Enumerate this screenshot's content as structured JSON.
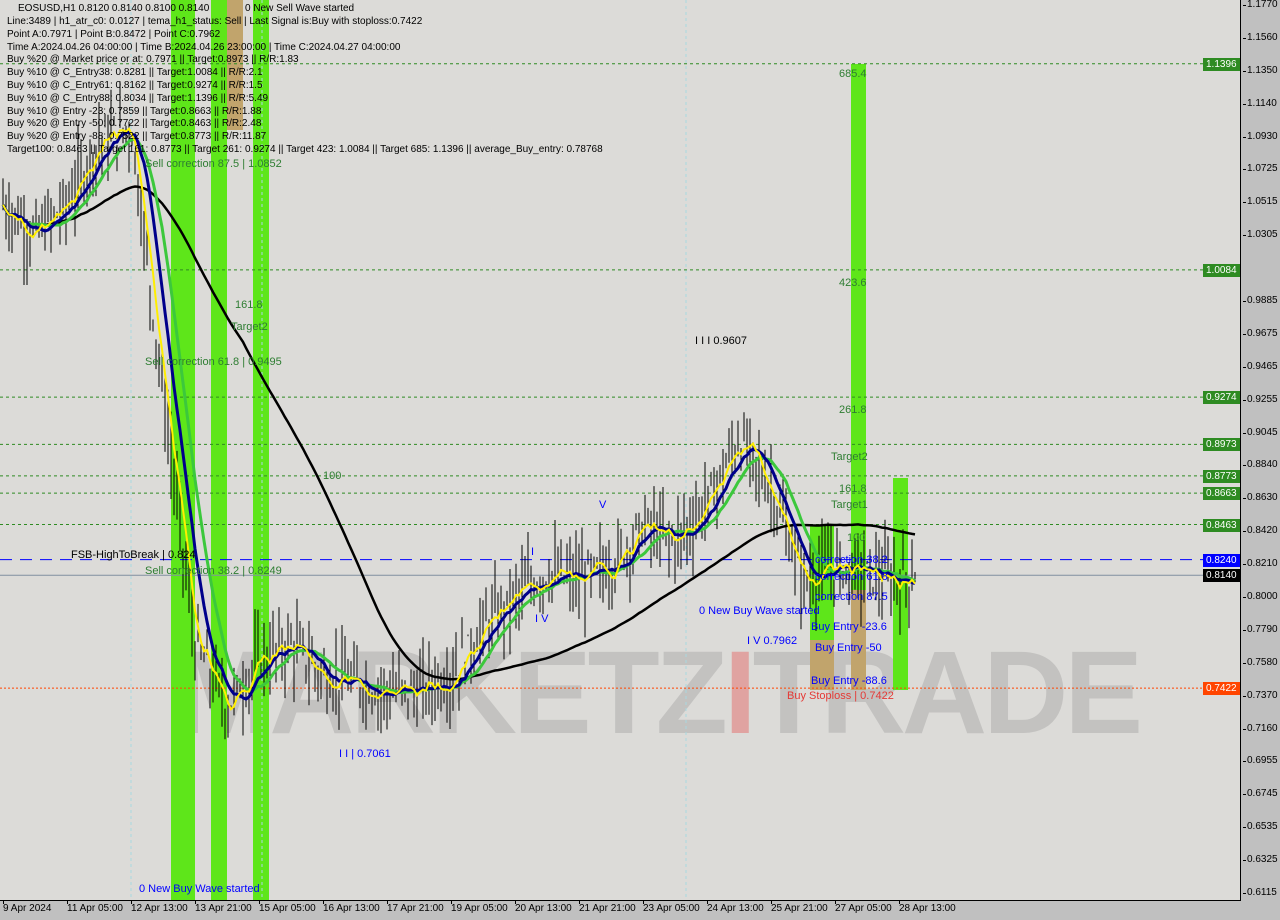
{
  "header": {
    "symbol_line": "EOSUSD,H1  0.8120 0.8140 0.8100 0.8140",
    "info_lines": [
      "Line:3489 | h1_atr_c0: 0.0127 | tema_h1_status: Sell | Last Signal is:Buy with stoploss:0.7422",
      "Point A:0.7971 | Point B:0.8472 | Point C:0.7962",
      "Time A:2024.04.26 04:00:00 | Time B:2024.04.26 23:00:00 | Time C:2024.04.27 04:00:00",
      "Buy %20 @ Market price or at: 0.7971 || Target:0.8973 || R/R:1.83",
      "Buy %10 @ C_Entry38: 0.8281 || Target:1.0084 || R/R:2.1",
      "Buy %10 @ C_Entry61: 0.8162 || Target:0.9274 || R/R:1.5",
      "Buy %10 @ C_Entry88: 0.8034 || Target:1.1396 || R/R:5.49",
      "Buy %10 @ Entry -23: 0.7859 || Target:0.8663 || R/R:1.88",
      "Buy %20 @ Entry -50: 0.7722 || Target:0.8463 || R/R:2.48",
      "Buy %20 @ Entry -88: 0.7522 || Target:0.8773 || R/R:11.87",
      "Target100: 0.8463 || Target 161: 0.8773 || Target 261: 0.9274 || Target 423: 1.0084 || Target 685: 1.1396 || average_Buy_entry: 0.78768"
    ],
    "overlay_text": "0 New Sell Wave started"
  },
  "annotations": [
    {
      "text": "Sell correction 87.5 | 1.0852",
      "price": 1.0852,
      "time": "12 Apr 2024 20:00",
      "color": "#2e7d32"
    },
    {
      "text": "161.8",
      "price": 0.986,
      "time": "14 Apr 17:00",
      "color": "#2e7d32"
    },
    {
      "text": "Target2",
      "price": 0.972,
      "time": "14 Apr 15:00",
      "color": "#2e7d32"
    },
    {
      "text": "Sell correction 61.8 | 0.9495",
      "price": 0.9495,
      "time": "12 Apr 20:00",
      "color": "#2e7d32"
    },
    {
      "text": "100",
      "price": 0.877,
      "time": "16 Apr 13:00",
      "color": "#2e7d32"
    },
    {
      "text": "FSB-HighToBreak | 0.824",
      "price": 0.827,
      "time": "11 Apr 07:00",
      "color": "#000000"
    },
    {
      "text": "Sell correction 38.2 | 0.8249",
      "price": 0.817,
      "time": "12 Apr 20:00",
      "color": "#2e7d32"
    },
    {
      "text": "I I I 0.9607",
      "price": 0.963,
      "time": "24 Apr 07:00",
      "color": "#000000"
    },
    {
      "text": "I I | 0.7061",
      "price": 0.7,
      "time": "16 Apr 21:00",
      "color": "#0000ff"
    },
    {
      "text": "I V",
      "price": 0.786,
      "time": "20 Apr 23:00",
      "color": "#0000ff"
    },
    {
      "text": "V",
      "price": 0.859,
      "time": "22 Apr 07:00",
      "color": "#0000ff"
    },
    {
      "text": "I",
      "price": 0.829,
      "time": "20 Apr 21:00",
      "color": "#0000ff"
    },
    {
      "text": "0 New Buy Wave started",
      "price": 0.788,
      "time": "24 Apr 09:00",
      "color": "#0000ff"
    },
    {
      "text": "I V 0.7962",
      "price": 0.785,
      "time": "25 Apr 21:00",
      "color": "#0000ff"
    },
    {
      "text": "0 New Buy Wave started",
      "price": 0.614,
      "time": "12 Apr 17:00",
      "color": "#0000ff"
    },
    {
      "text": "685.4",
      "price": 1.133,
      "time": "27 Apr 07:00",
      "color": "#2e7d32"
    },
    {
      "text": "423.6",
      "price": 1.0,
      "time": "27 Apr 07:00",
      "color": "#2e7d32"
    },
    {
      "text": "261.8",
      "price": 0.9195,
      "time": "27 Apr 07:00",
      "color": "#2e7d32"
    },
    {
      "text": "Target2",
      "price": 0.889,
      "time": "27 Apr 03:00",
      "color": "#2e7d32"
    },
    {
      "text": "161.8",
      "price": 0.869,
      "time": "27 Apr 07:00",
      "color": "#2e7d32"
    },
    {
      "text": "Target1",
      "price": 0.859,
      "time": "27 Apr 03:00",
      "color": "#2e7d32"
    },
    {
      "text": "100",
      "price": 0.838,
      "time": "27 Apr 11:00",
      "color": "#2e7d32"
    },
    {
      "text": "correction 38.2",
      "price": 0.824,
      "time": "26 Apr 19:00",
      "color": "#0000ff"
    },
    {
      "text": "correction 61.8",
      "price": 0.813,
      "time": "26 Apr 19:00",
      "color": "#0000ff"
    },
    {
      "text": "correction 87.5",
      "price": 0.8,
      "time": "26 Apr 19:00",
      "color": "#0000ff"
    },
    {
      "text": "Buy Entry -23.6",
      "price": 0.781,
      "time": "26 Apr 17:00",
      "color": "#0000ff"
    },
    {
      "text": "Buy Entry -50",
      "price": 0.768,
      "time": "26 Apr 19:00",
      "color": "#0000ff"
    },
    {
      "text": "Buy Entry -88.6",
      "price": 0.747,
      "time": "26 Apr 17:00",
      "color": "#0000ff"
    },
    {
      "text": "Buy Stoploss | 0.7422",
      "price": 0.737,
      "time": "26 Apr 05:00",
      "color": "#e53935"
    }
  ],
  "levels": [
    {
      "price": 1.1396,
      "label": "1.1396",
      "color": "#2e8b22",
      "style": "dashed"
    },
    {
      "price": 1.0084,
      "label": "1.0084",
      "color": "#2e8b22",
      "style": "dashed"
    },
    {
      "price": 0.9274,
      "label": "0.9274",
      "color": "#2e8b22",
      "style": "dashed"
    },
    {
      "price": 0.8973,
      "label": "0.8973",
      "color": "#2e8b22",
      "style": "dashed"
    },
    {
      "price": 0.8773,
      "label": "0.8773",
      "color": "#2e8b22",
      "style": "dashed"
    },
    {
      "price": 0.8663,
      "label": "0.8663",
      "color": "#2e8b22",
      "style": "dashed"
    },
    {
      "price": 0.8463,
      "label": "0.8463",
      "color": "#2e8b22",
      "style": "dashed"
    },
    {
      "price": 0.824,
      "label": "0.8240",
      "color": "#0000ff",
      "style": "longdash"
    },
    {
      "price": 0.814,
      "label": "0.8140",
      "color": "#000000",
      "style": "solid"
    },
    {
      "price": 0.7422,
      "label": "0.7422",
      "color": "#ff4500",
      "style": "dotted"
    }
  ],
  "watermark": "MARKETZ TRADE",
  "chart_data": {
    "type": "candlestick",
    "title": "EOSUSD,H1",
    "timeframe": "H1",
    "ylim": [
      0.6115,
      1.177
    ],
    "y_ticks": [
      "1.1770",
      "1.1560",
      "1.1350",
      "1.1140",
      "1.0930",
      "1.0725",
      "1.0515",
      "1.0305",
      "0.9885",
      "0.9675",
      "0.9465",
      "0.9255",
      "0.9045",
      "0.8840",
      "0.8630",
      "0.8420",
      "0.8210",
      "0.8000",
      "0.7790",
      "0.7580",
      "0.7370",
      "0.7160",
      "0.6955",
      "0.6745",
      "0.6535",
      "0.6325",
      "0.6115"
    ],
    "x_ticks": [
      "9 Apr 2024",
      "11 Apr 05:00",
      "12 Apr 13:00",
      "13 Apr 21:00",
      "15 Apr 05:00",
      "16 Apr 13:00",
      "17 Apr 21:00",
      "19 Apr 05:00",
      "20 Apr 13:00",
      "21 Apr 21:00",
      "23 Apr 05:00",
      "24 Apr 13:00",
      "25 Apr 21:00",
      "27 Apr 05:00",
      "28 Apr 13:00"
    ],
    "close_approx": {
      "time": [
        "9 Apr 21:00",
        "10 Apr 13:00",
        "11 Apr 05:00",
        "11 Apr 21:00",
        "12 Apr 13:00",
        "13 Apr 05:00",
        "13 Apr 21:00",
        "14 Apr 13:00",
        "15 Apr 05:00",
        "15 Apr 21:00",
        "16 Apr 13:00",
        "17 Apr 05:00",
        "17 Apr 21:00",
        "18 Apr 13:00",
        "19 Apr 05:00",
        "19 Apr 21:00",
        "20 Apr 13:00",
        "21 Apr 05:00",
        "21 Apr 21:00",
        "22 Apr 13:00",
        "23 Apr 05:00",
        "23 Apr 21:00",
        "24 Apr 13:00",
        "25 Apr 05:00",
        "25 Apr 21:00",
        "26 Apr 13:00",
        "27 Apr 05:00",
        "27 Apr 21:00",
        "28 Apr 13:00",
        "28 Apr 20:00"
      ],
      "value": [
        1.05,
        1.03,
        1.05,
        1.09,
        1.1,
        0.93,
        0.77,
        0.73,
        0.76,
        0.77,
        0.75,
        0.745,
        0.74,
        0.74,
        0.75,
        0.78,
        0.8,
        0.815,
        0.81,
        0.82,
        0.845,
        0.835,
        0.86,
        0.9,
        0.87,
        0.81,
        0.82,
        0.815,
        0.81,
        0.814
      ]
    },
    "last": {
      "open": 0.812,
      "high": 0.814,
      "low": 0.81,
      "close": 0.814
    }
  },
  "zones": [
    {
      "from": "13 Apr 09:00",
      "to": "13 Apr 21:00",
      "color": "#5ee61a"
    },
    {
      "from": "14 Apr 05:00",
      "to": "14 Apr 13:00",
      "color": "#5ee61a"
    },
    {
      "from": "15 Apr 02:00",
      "to": "15 Apr 10:00",
      "color": "#5ee61a"
    },
    {
      "from": "26 Apr 04:00",
      "to": "26 Apr 16:00",
      "color": "#5ee61a"
    },
    {
      "from": "27 Apr 01:00",
      "to": "27 Apr 09:00",
      "color": "#5ee61a"
    },
    {
      "from": "27 Apr 22:00",
      "to": "28 Apr 06:00",
      "color": "#5ee61a"
    }
  ]
}
